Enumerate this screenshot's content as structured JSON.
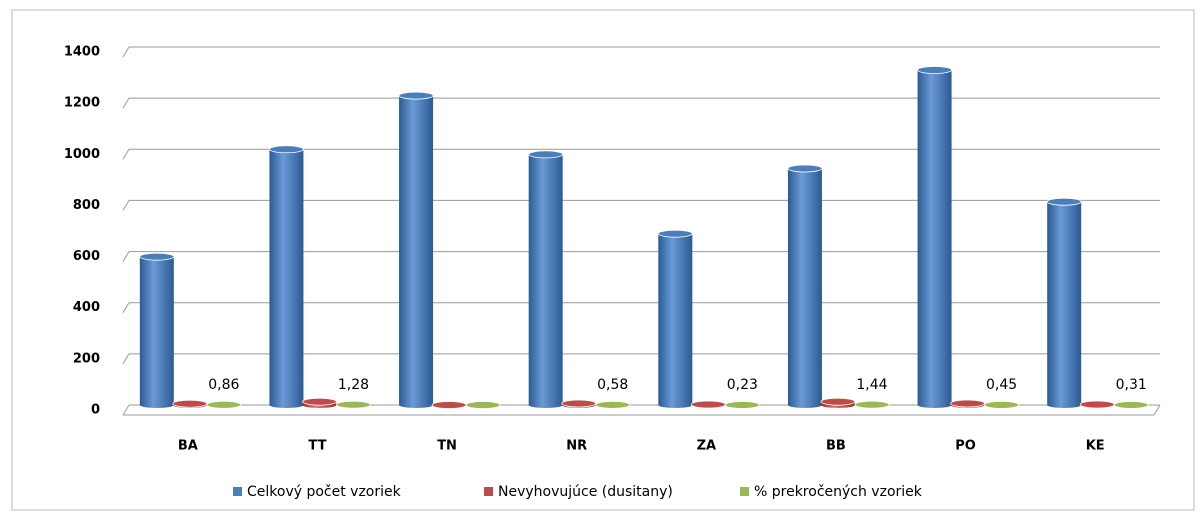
{
  "chart_data": {
    "type": "bar3d",
    "categories": [
      "BA",
      "TT",
      "TN",
      "NR",
      "ZA",
      "BB",
      "PO",
      "KE"
    ],
    "series": [
      {
        "name": "Celkový počet vzoriek",
        "color": "#4a7ebb",
        "values": [
          580,
          1000,
          1210,
          980,
          670,
          925,
          1310,
          795
        ]
      },
      {
        "name": "Nevyhovujúce (dusitany)",
        "color": "#be4b48",
        "values": [
          5,
          13,
          0,
          6,
          2,
          13,
          6,
          2
        ]
      },
      {
        "name": "% prekročených vzoriek",
        "color": "#98b954",
        "values": [
          0.86,
          1.28,
          0,
          0.58,
          0.23,
          1.44,
          0.45,
          0.31
        ],
        "value_labels": [
          "0,86",
          "1,28",
          null,
          "0,58",
          "0,23",
          "1,44",
          "0,45",
          "0,31"
        ]
      }
    ],
    "ylim": [
      0,
      1400
    ],
    "yticks": [
      0,
      200,
      400,
      600,
      800,
      1000,
      1200,
      1400
    ],
    "grid": true,
    "legend": "bottom"
  }
}
